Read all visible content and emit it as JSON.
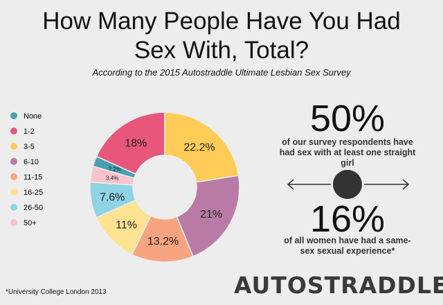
{
  "chart_data": {
    "type": "donut",
    "title": "How Many People Have You Had Sex With, Total?",
    "subtitle": "According to the 2015 Autostraddle Ultimate Lesbian Sex Survey",
    "categories": [
      "None",
      "1-2",
      "3-5",
      "6-10",
      "11-15",
      "16-25",
      "26-50",
      "50+"
    ],
    "values": [
      2.2,
      18,
      22.2,
      21,
      13.2,
      11,
      7.6,
      3.4
    ],
    "value_labels": [
      "2.2%",
      "18%",
      "22.2%",
      "21%",
      "13.2%",
      "11%",
      "7.6%",
      "3.4%"
    ],
    "colors": [
      "#4b9fb1",
      "#e8577b",
      "#ffcd57",
      "#b97ba6",
      "#f9a480",
      "#ffe292",
      "#8fd4e4",
      "#f7c3cc"
    ]
  },
  "stats": [
    {
      "value": "50%",
      "text": "of our survey respondents have had sex with at least one straight girl"
    },
    {
      "value": "16%",
      "text": "of all women have had a same-sex sexual experience*"
    }
  ],
  "footnote": "*University College London 2013",
  "logo": "AUTOSTRADDLE"
}
